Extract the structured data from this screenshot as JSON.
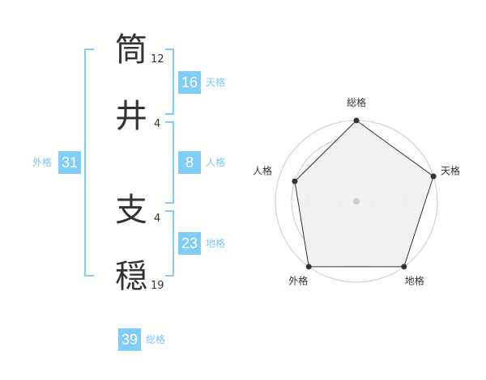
{
  "name": {
    "chars": [
      {
        "char": "筒",
        "strokes": "12"
      },
      {
        "char": "井",
        "strokes": "4"
      },
      {
        "char": "支",
        "strokes": "4"
      },
      {
        "char": "穏",
        "strokes": "19"
      }
    ]
  },
  "scores": {
    "tenkaku": {
      "label": "天格",
      "value": "16"
    },
    "jinkaku": {
      "label": "人格",
      "value": "8"
    },
    "chikaku": {
      "label": "地格",
      "value": "23"
    },
    "gaikaku": {
      "label": "外格",
      "value": "31"
    },
    "soukaku": {
      "label": "総格",
      "value": "39"
    }
  },
  "colors": {
    "accent": "#81cdf9",
    "label": "#7cc7f4"
  },
  "chart_data": {
    "type": "radar",
    "axes": [
      "総格",
      "天格",
      "地格",
      "外格",
      "人格"
    ],
    "values": [
      5,
      5,
      5,
      5,
      4
    ],
    "rlim": [
      0,
      5
    ],
    "rings": 5
  }
}
